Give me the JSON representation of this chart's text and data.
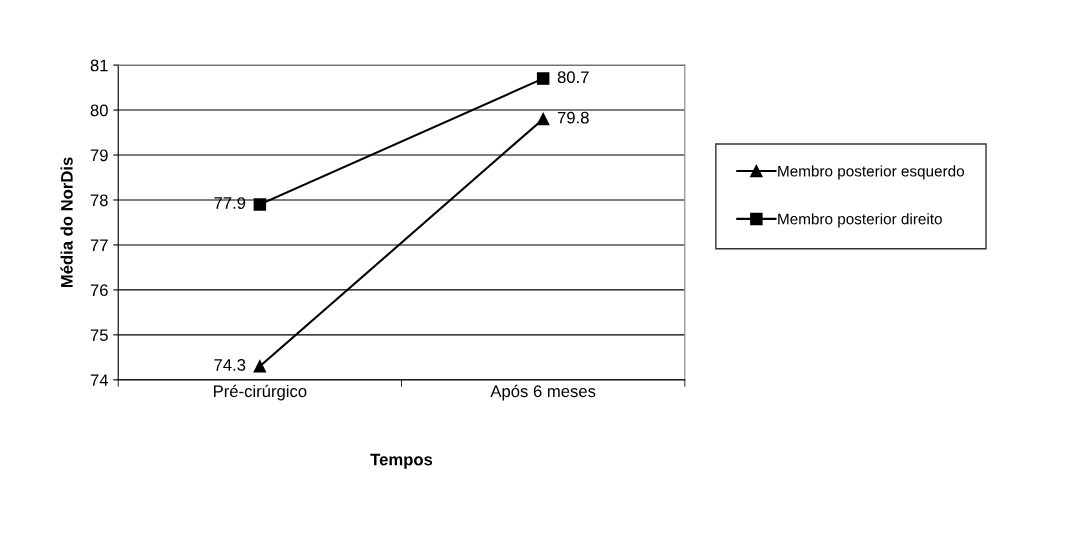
{
  "chart_data": {
    "type": "line",
    "xlabel": "Tempos",
    "ylabel": "Média do NorDis",
    "categories": [
      "Pré-cirúrgico",
      "Após 6 meses"
    ],
    "series": [
      {
        "name": "Membro posterior esquerdo",
        "color": "#000000",
        "marker": "triangle",
        "values": [
          74.3,
          79.8
        ]
      },
      {
        "name": "Membro posterior direito",
        "color": "#000000",
        "marker": "square",
        "values": [
          77.9,
          80.7
        ]
      }
    ],
    "ylim": [
      74,
      81
    ],
    "yticks": [
      74,
      75,
      76,
      77,
      78,
      79,
      80,
      81
    ],
    "grid": "y",
    "legend": "right",
    "data_labels": true,
    "line_style": "solid"
  }
}
